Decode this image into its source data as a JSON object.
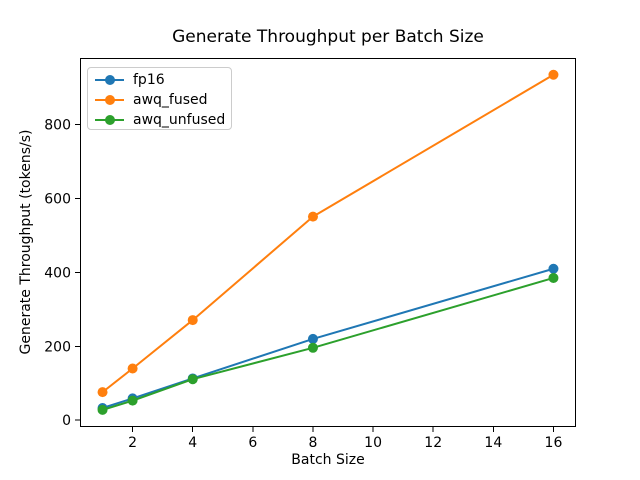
{
  "chart_data": {
    "type": "line",
    "title": "Generate Throughput per Batch Size",
    "xlabel": "Batch Size",
    "ylabel": "Generate Throughput (tokens/s)",
    "x": [
      1,
      2,
      4,
      8,
      16
    ],
    "series": [
      {
        "name": "fp16",
        "color": "#1f77b4",
        "values": [
          33,
          59,
          113,
          220,
          410
        ]
      },
      {
        "name": "awq_fused",
        "color": "#ff7f0e",
        "values": [
          76,
          140,
          271,
          551,
          935
        ]
      },
      {
        "name": "awq_unfused",
        "color": "#2ca02c",
        "values": [
          28,
          53,
          111,
          196,
          385
        ]
      }
    ],
    "xlim": [
      0.25,
      16.75
    ],
    "ylim": [
      -18.4,
      980.4
    ],
    "xticks": [
      2,
      4,
      6,
      8,
      10,
      12,
      14,
      16
    ],
    "yticks": [
      0,
      200,
      400,
      600,
      800
    ],
    "grid": false,
    "marker": "o",
    "legend_position": "upper left",
    "axes_color": "#000000",
    "background_color": "#ffffff"
  }
}
